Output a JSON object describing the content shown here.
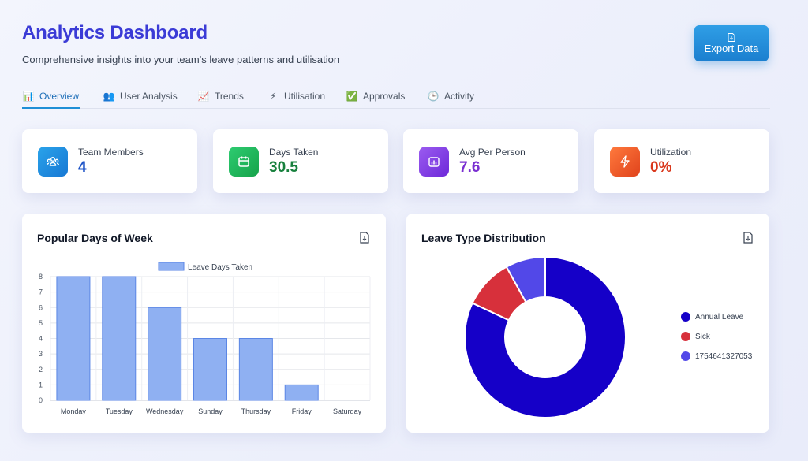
{
  "header": {
    "title": "Analytics Dashboard",
    "subtitle": "Comprehensive insights into your team's leave patterns and utilisation",
    "export_label": "Export Data"
  },
  "tabs": [
    {
      "label": "Overview",
      "icon": "bar-chart-icon",
      "glyph": "📊",
      "active": true
    },
    {
      "label": "User Analysis",
      "icon": "users-icon",
      "glyph": "👥",
      "active": false
    },
    {
      "label": "Trends",
      "icon": "trend-chart-icon",
      "glyph": "📈",
      "active": false
    },
    {
      "label": "Utilisation",
      "icon": "lightning-icon",
      "glyph": "⚡",
      "active": false
    },
    {
      "label": "Approvals",
      "icon": "check-box-icon",
      "glyph": "✅",
      "active": false
    },
    {
      "label": "Activity",
      "icon": "clock-icon",
      "glyph": "🕒",
      "active": false
    }
  ],
  "stats": [
    {
      "label": "Team Members",
      "value": "4",
      "icon": "team-icon",
      "color": "#1e54c7"
    },
    {
      "label": "Days Taken",
      "value": "30.5",
      "icon": "calendar-icon",
      "color": "#17803d"
    },
    {
      "label": "Avg Per Person",
      "value": "7.6",
      "icon": "bar-chart-icon",
      "color": "#7a2fd1"
    },
    {
      "label": "Utilization",
      "value": "0%",
      "icon": "lightning-icon",
      "color": "#d9361a"
    }
  ],
  "panels": {
    "bar_title": "Popular Days of Week",
    "donut_title": "Leave Type Distribution"
  },
  "chart_data": [
    {
      "type": "bar",
      "title": "Popular Days of Week",
      "categories": [
        "Monday",
        "Tuesday",
        "Wednesday",
        "Sunday",
        "Thursday",
        "Friday",
        "Saturday"
      ],
      "series": [
        {
          "name": "Leave Days Taken",
          "values": [
            8,
            8,
            6,
            4,
            4,
            1,
            0
          ],
          "color": "#8fb0f2"
        }
      ],
      "ylim": [
        0,
        8
      ],
      "yticks": [
        "0",
        "1",
        "2",
        "3",
        "4",
        "5",
        "6",
        "7",
        "8"
      ],
      "grid": true,
      "legend": "top-center"
    },
    {
      "type": "pie",
      "title": "Leave Type Distribution",
      "labels": [
        "Annual Leave",
        "Sick",
        "1754641327053"
      ],
      "values": [
        82,
        10,
        8
      ],
      "colors": [
        "#1500c8",
        "#d7303b",
        "#5248e8"
      ],
      "legend": "right"
    }
  ]
}
